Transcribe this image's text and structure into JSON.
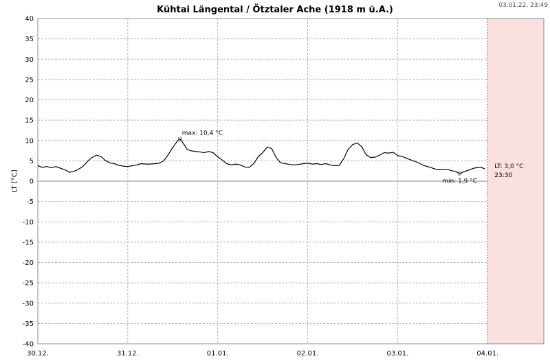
{
  "chart_data": {
    "type": "line",
    "title": "Kühtai Längental / Ötztaler Ache (1918 m ü.A.)",
    "timestamp": "03.01.22, 23:49",
    "ylabel": "LT [°C]",
    "xlabel": "",
    "ylim": [
      -40,
      40
    ],
    "xlim": [
      0,
      5.625
    ],
    "grid": true,
    "yticks": [
      40,
      35,
      30,
      25,
      20,
      15,
      10,
      5,
      0,
      -5,
      -10,
      -15,
      -20,
      -25,
      -30,
      -35,
      -40
    ],
    "xticks": [
      {
        "pos": 0,
        "label": "30.12."
      },
      {
        "pos": 1,
        "label": "31.12."
      },
      {
        "pos": 2,
        "label": "01.01."
      },
      {
        "pos": 3,
        "label": "02.01."
      },
      {
        "pos": 4,
        "label": "03.01."
      },
      {
        "pos": 5,
        "label": "04.01."
      }
    ],
    "forecast_region": {
      "from": 5,
      "to": 5.625,
      "color": "#fbe0e0",
      "line_color": "#cc5555"
    },
    "series": [
      {
        "color": "#000000",
        "points": [
          [
            0.0,
            3.8
          ],
          [
            0.05,
            3.4
          ],
          [
            0.1,
            3.6
          ],
          [
            0.15,
            3.3
          ],
          [
            0.2,
            3.6
          ],
          [
            0.25,
            3.2
          ],
          [
            0.3,
            2.8
          ],
          [
            0.35,
            2.2
          ],
          [
            0.4,
            2.4
          ],
          [
            0.45,
            2.9
          ],
          [
            0.5,
            3.6
          ],
          [
            0.55,
            4.8
          ],
          [
            0.6,
            5.8
          ],
          [
            0.65,
            6.4
          ],
          [
            0.7,
            6.1
          ],
          [
            0.75,
            5.1
          ],
          [
            0.8,
            4.5
          ],
          [
            0.85,
            4.3
          ],
          [
            0.9,
            3.9
          ],
          [
            0.95,
            3.7
          ],
          [
            1.0,
            3.6
          ],
          [
            1.05,
            3.8
          ],
          [
            1.1,
            4.0
          ],
          [
            1.15,
            4.3
          ],
          [
            1.2,
            4.2
          ],
          [
            1.25,
            4.2
          ],
          [
            1.3,
            4.3
          ],
          [
            1.35,
            4.4
          ],
          [
            1.4,
            5.0
          ],
          [
            1.45,
            6.5
          ],
          [
            1.5,
            8.3
          ],
          [
            1.55,
            9.8
          ],
          [
            1.58,
            10.4
          ],
          [
            1.62,
            9.2
          ],
          [
            1.66,
            7.8
          ],
          [
            1.7,
            7.5
          ],
          [
            1.75,
            7.3
          ],
          [
            1.8,
            7.2
          ],
          [
            1.85,
            7.0
          ],
          [
            1.9,
            7.3
          ],
          [
            1.95,
            7.0
          ],
          [
            2.0,
            6.0
          ],
          [
            2.05,
            5.2
          ],
          [
            2.1,
            4.3
          ],
          [
            2.15,
            4.0
          ],
          [
            2.2,
            4.2
          ],
          [
            2.25,
            4.0
          ],
          [
            2.3,
            3.5
          ],
          [
            2.35,
            3.4
          ],
          [
            2.4,
            4.3
          ],
          [
            2.45,
            6.0
          ],
          [
            2.5,
            7.0
          ],
          [
            2.55,
            8.4
          ],
          [
            2.6,
            8.0
          ],
          [
            2.65,
            5.8
          ],
          [
            2.7,
            4.5
          ],
          [
            2.75,
            4.3
          ],
          [
            2.8,
            4.1
          ],
          [
            2.85,
            4.0
          ],
          [
            2.9,
            4.1
          ],
          [
            2.95,
            4.3
          ],
          [
            3.0,
            4.4
          ],
          [
            3.05,
            4.2
          ],
          [
            3.1,
            4.3
          ],
          [
            3.15,
            4.1
          ],
          [
            3.2,
            4.3
          ],
          [
            3.25,
            4.0
          ],
          [
            3.3,
            3.8
          ],
          [
            3.35,
            3.9
          ],
          [
            3.4,
            5.5
          ],
          [
            3.45,
            7.8
          ],
          [
            3.5,
            9.0
          ],
          [
            3.55,
            9.4
          ],
          [
            3.6,
            8.5
          ],
          [
            3.65,
            6.5
          ],
          [
            3.7,
            5.8
          ],
          [
            3.75,
            5.9
          ],
          [
            3.8,
            6.4
          ],
          [
            3.85,
            7.0
          ],
          [
            3.9,
            6.9
          ],
          [
            3.95,
            7.1
          ],
          [
            4.0,
            6.3
          ],
          [
            4.05,
            6.1
          ],
          [
            4.1,
            5.6
          ],
          [
            4.15,
            5.2
          ],
          [
            4.2,
            4.8
          ],
          [
            4.25,
            4.3
          ],
          [
            4.3,
            3.8
          ],
          [
            4.35,
            3.5
          ],
          [
            4.4,
            3.1
          ],
          [
            4.45,
            2.8
          ],
          [
            4.5,
            2.8
          ],
          [
            4.55,
            2.9
          ],
          [
            4.6,
            2.6
          ],
          [
            4.65,
            2.3
          ],
          [
            4.69,
            1.9
          ],
          [
            4.72,
            2.2
          ],
          [
            4.76,
            2.5
          ],
          [
            4.8,
            2.8
          ],
          [
            4.85,
            3.2
          ],
          [
            4.9,
            3.4
          ],
          [
            4.93,
            3.4
          ],
          [
            4.97,
            3.0
          ]
        ]
      }
    ],
    "annotations": {
      "max": {
        "text": "max: 10,4 °C",
        "x": 1.58,
        "y": 10.4
      },
      "min": {
        "text": "min: 1,9 °C",
        "x": 4.69,
        "y": 1.9
      },
      "current_value": {
        "text": "LT: 3,0 °C",
        "x": 4.97,
        "y": 3.0
      },
      "current_time": {
        "text": "23:30"
      }
    }
  }
}
